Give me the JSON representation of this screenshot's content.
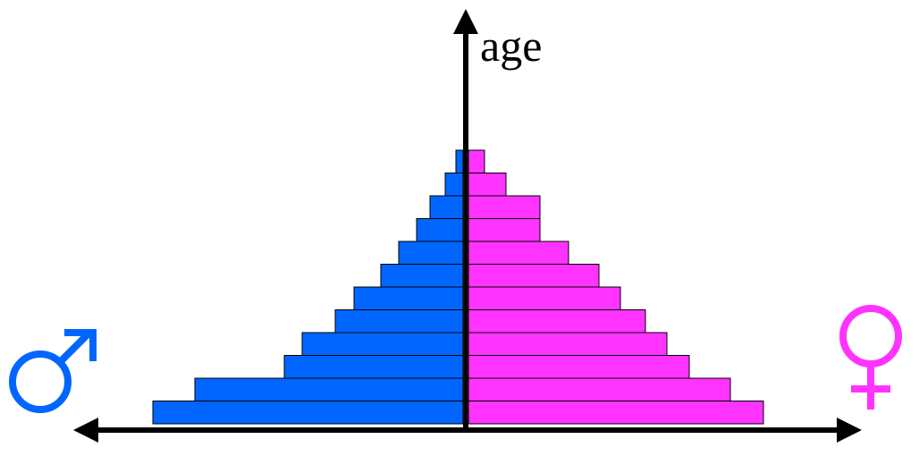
{
  "chart_data": {
    "type": "bar",
    "subtype": "population-pyramid",
    "ylabel": "age",
    "age_groups": 12,
    "series": [
      {
        "gender": "male",
        "symbol": "♂",
        "color": "#0066ff",
        "values": [
          3.47,
          3.0,
          2.0,
          1.8,
          1.43,
          1.22,
          0.92,
          0.72,
          0.52,
          0.37,
          0.2,
          0.08
        ]
      },
      {
        "gender": "female",
        "symbol": "♀",
        "color": "#ff33ff",
        "values": [
          3.3,
          2.93,
          2.47,
          2.22,
          1.98,
          1.7,
          1.46,
          1.12,
          0.8,
          0.8,
          0.42,
          0.18
        ]
      }
    ],
    "grid": false,
    "legend": "none"
  }
}
